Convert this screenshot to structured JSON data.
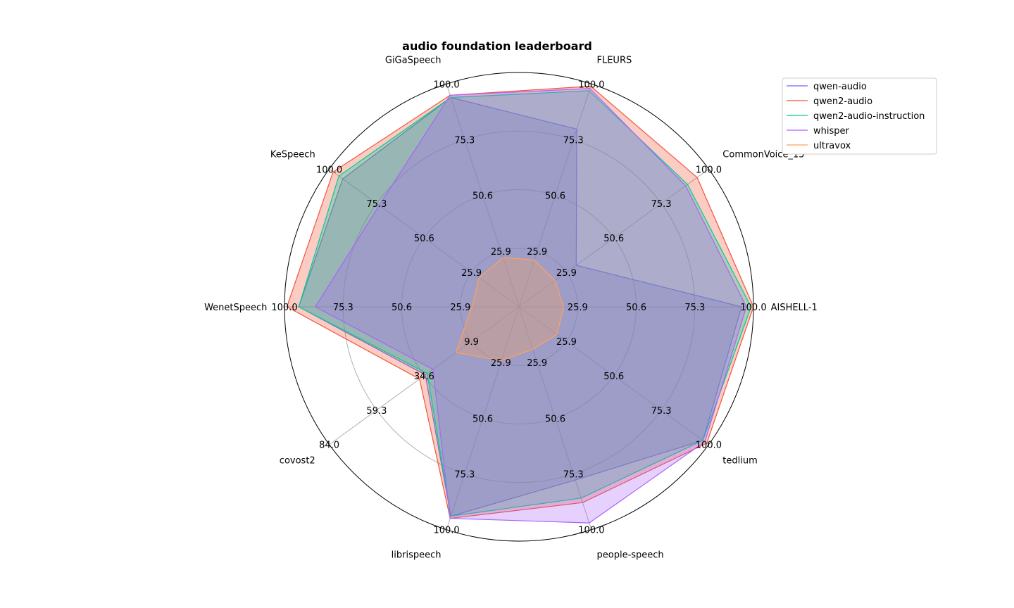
{
  "chart_data": {
    "type": "radar",
    "title": "audio foundation leaderboard",
    "axes": [
      {
        "name": "AISHELL-1",
        "ticks": [
          "25.9",
          "50.6",
          "75.3",
          "100.0"
        ],
        "min": 1.2,
        "max": 100.0
      },
      {
        "name": "CommonVoice_15",
        "ticks": [
          "25.9",
          "50.6",
          "75.3",
          "100.0"
        ],
        "min": 1.2,
        "max": 100.0
      },
      {
        "name": "FLEURS",
        "ticks": [
          "25.9",
          "50.6",
          "75.3",
          "100.0"
        ],
        "min": 1.2,
        "max": 100.0
      },
      {
        "name": "GiGaSpeech",
        "ticks": [
          "25.9",
          "50.6",
          "75.3",
          "100.0"
        ],
        "min": 1.2,
        "max": 100.0
      },
      {
        "name": "KeSpeech",
        "ticks": [
          "25.9",
          "50.6",
          "75.3",
          "100.0"
        ],
        "min": 1.2,
        "max": 100.0
      },
      {
        "name": "WenetSpeech",
        "ticks": [
          "25.9",
          "50.6",
          "75.3",
          "100.0"
        ],
        "min": 1.2,
        "max": 100.0
      },
      {
        "name": "covost2",
        "ticks": [
          "9.9",
          "34.6",
          "59.3",
          "84.0"
        ],
        "min": -14.8,
        "max": 84.0
      },
      {
        "name": "librispeech",
        "ticks": [
          "25.9",
          "50.6",
          "75.3",
          "100.0"
        ],
        "min": 1.2,
        "max": 100.0
      },
      {
        "name": "people-speech",
        "ticks": [
          "25.9",
          "50.6",
          "75.3",
          "100.0"
        ],
        "min": 1.2,
        "max": 100.0
      },
      {
        "name": "tedlium",
        "ticks": [
          "25.9",
          "50.6",
          "75.3",
          "100.0"
        ],
        "min": 1.2,
        "max": 100.0
      }
    ],
    "series": [
      {
        "name": "qwen-audio",
        "color": "#636efa",
        "values": [
          95,
          31,
          80,
          94,
          93,
          94,
          34,
          94,
          78,
          97
        ]
      },
      {
        "name": "qwen2-audio",
        "color": "#ef553b",
        "values": [
          100,
          94,
          99,
          95,
          98,
          99,
          37,
          95,
          88,
          99
        ]
      },
      {
        "name": "qwen2-audio-instruction",
        "color": "#00cc96",
        "values": [
          99,
          89,
          97,
          94,
          95,
          94,
          33,
          94,
          86,
          97
        ]
      },
      {
        "name": "whisper",
        "color": "#ab63fa",
        "values": [
          97,
          88,
          98,
          95,
          74,
          87,
          30,
          95,
          97,
          98
        ]
      },
      {
        "name": "ultravox",
        "color": "#ffa15a",
        "values": [
          20,
          20,
          22,
          23,
          22,
          21,
          18,
          25,
          20,
          21
        ]
      }
    ],
    "legend_position": "top-right",
    "grid": true
  }
}
